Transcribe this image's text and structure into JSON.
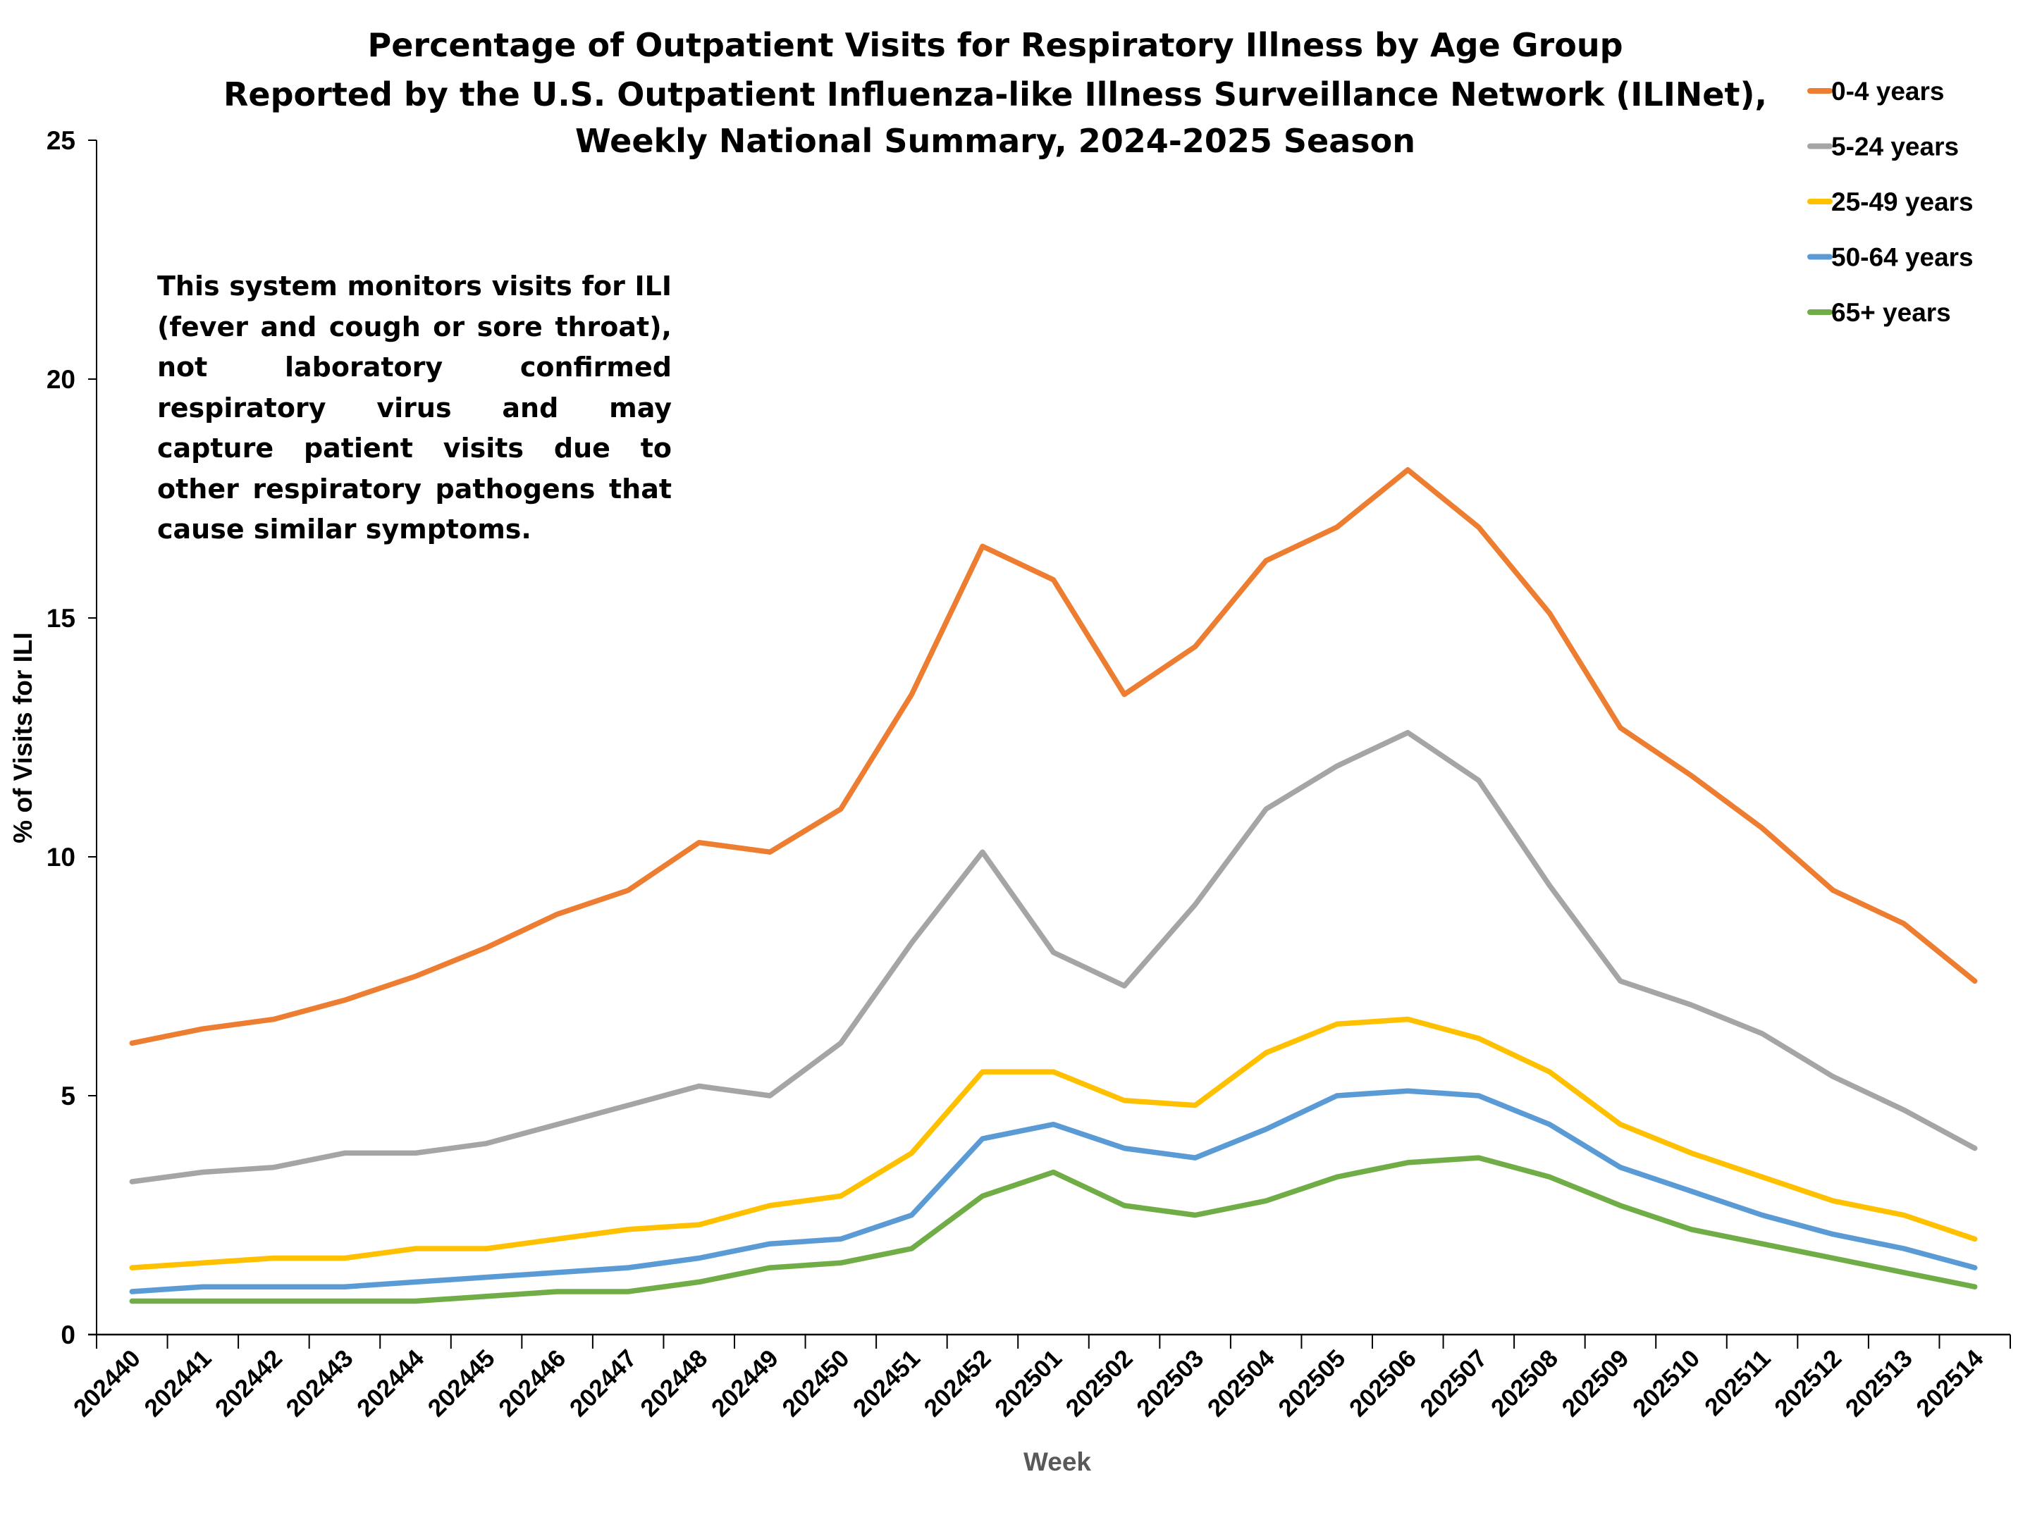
{
  "chart_data": {
    "type": "line",
    "title": [
      "Percentage of Outpatient Visits for Respiratory Illness by Age Group",
      "Reported by the U.S. Outpatient Influenza-like Illness Surveillance Network (ILINet),",
      "Weekly National Summary, 2024-2025 Season"
    ],
    "xlabel": "Week",
    "ylabel": "% of Visits for ILI",
    "ylim": [
      0,
      25
    ],
    "yticks": [
      0,
      5,
      10,
      15,
      20,
      25
    ],
    "grid": false,
    "legend_position": "top-right",
    "annotation": "This system monitors visits for ILI (fever and cough or sore throat), not laboratory confirmed respiratory virus and may capture patient visits due to other respiratory pathogens that cause similar symptoms.",
    "categories": [
      "202440",
      "202441",
      "202442",
      "202443",
      "202444",
      "202445",
      "202446",
      "202447",
      "202448",
      "202449",
      "202450",
      "202451",
      "202452",
      "202501",
      "202502",
      "202503",
      "202504",
      "202505",
      "202506",
      "202507",
      "202508",
      "202509",
      "202510",
      "202511",
      "202512",
      "202513",
      "202514"
    ],
    "series": [
      {
        "name": "0-4 years",
        "color": "#ED7D31",
        "values": [
          6.1,
          6.4,
          6.6,
          7.0,
          7.5,
          8.1,
          8.8,
          9.3,
          10.3,
          10.1,
          11.0,
          13.4,
          16.5,
          15.8,
          13.4,
          14.4,
          16.2,
          16.9,
          18.1,
          16.9,
          15.1,
          12.7,
          11.7,
          10.6,
          9.3,
          8.6,
          7.4
        ]
      },
      {
        "name": "5-24 years",
        "color": "#A5A5A5",
        "values": [
          3.2,
          3.4,
          3.5,
          3.8,
          3.8,
          4.0,
          4.4,
          4.8,
          5.2,
          5.0,
          6.1,
          8.2,
          10.1,
          8.0,
          7.3,
          9.0,
          11.0,
          11.9,
          12.6,
          11.6,
          9.4,
          7.4,
          6.9,
          6.3,
          5.4,
          4.7,
          3.9
        ]
      },
      {
        "name": "25-49 years",
        "color": "#FFC000",
        "values": [
          1.4,
          1.5,
          1.6,
          1.6,
          1.8,
          1.8,
          2.0,
          2.2,
          2.3,
          2.7,
          2.9,
          3.8,
          5.5,
          5.5,
          4.9,
          4.8,
          5.9,
          6.5,
          6.6,
          6.2,
          5.5,
          4.4,
          3.8,
          3.3,
          2.8,
          2.5,
          2.0
        ]
      },
      {
        "name": "50-64 years",
        "color": "#5B9BD5",
        "values": [
          0.9,
          1.0,
          1.0,
          1.0,
          1.1,
          1.2,
          1.3,
          1.4,
          1.6,
          1.9,
          2.0,
          2.5,
          4.1,
          4.4,
          3.9,
          3.7,
          4.3,
          5.0,
          5.1,
          5.0,
          4.4,
          3.5,
          3.0,
          2.5,
          2.1,
          1.8,
          1.4
        ]
      },
      {
        "name": "65+ years",
        "color": "#70AD47",
        "values": [
          0.7,
          0.7,
          0.7,
          0.7,
          0.7,
          0.8,
          0.9,
          0.9,
          1.1,
          1.4,
          1.5,
          1.8,
          2.9,
          3.4,
          2.7,
          2.5,
          2.8,
          3.3,
          3.6,
          3.7,
          3.3,
          2.7,
          2.2,
          1.9,
          1.6,
          1.3,
          1.0
        ]
      }
    ]
  }
}
